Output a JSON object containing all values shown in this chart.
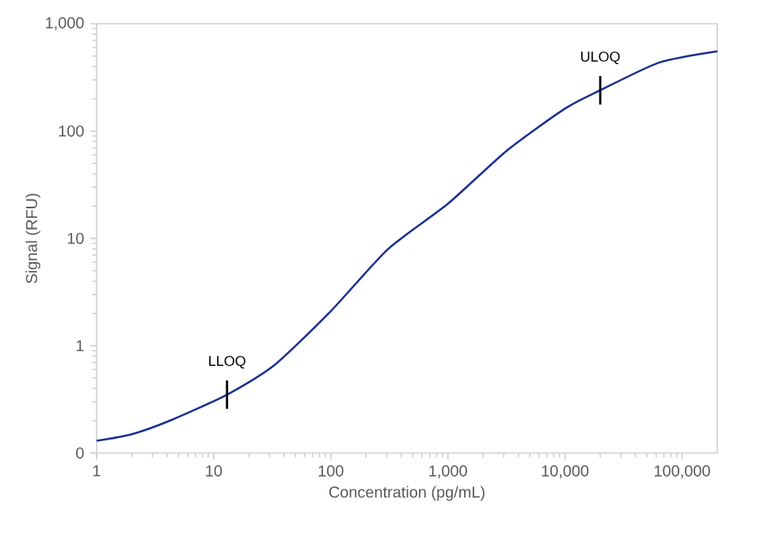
{
  "chart_data": {
    "type": "line",
    "xlabel": "Concentration (pg/mL)",
    "ylabel": "Signal (RFU)",
    "log": "xy",
    "marker": "none",
    "line_style": "solid",
    "xlim": [
      1,
      200000
    ],
    "ylim": [
      0.1,
      1000
    ],
    "xticks": [
      1,
      10,
      100,
      {
        "value": 1000,
        "label": "1,000"
      },
      {
        "value": 10000,
        "label": "10,000"
      },
      {
        "value": 100000,
        "label": "100,000"
      }
    ],
    "yticks": [
      {
        "value": 0.1,
        "label": "0"
      },
      1,
      10,
      100,
      {
        "value": 1000,
        "label": "1,000"
      }
    ],
    "x": [
      1,
      2,
      4.2,
      13,
      33,
      100,
      310,
      1000,
      3200,
      10000,
      20000,
      64000,
      200000
    ],
    "series": [
      {
        "color": "#1a2f8f",
        "values": [
          0.13,
          0.15,
          0.2,
          0.35,
          0.66,
          2.1,
          8,
          21,
          66,
          162,
          240,
          436,
          555
        ]
      }
    ],
    "annotations": [
      {
        "text": "LLOQ",
        "x": 13,
        "y": 0.35
      },
      {
        "text": "ULOQ",
        "x": 20000,
        "y": 240
      }
    ]
  }
}
